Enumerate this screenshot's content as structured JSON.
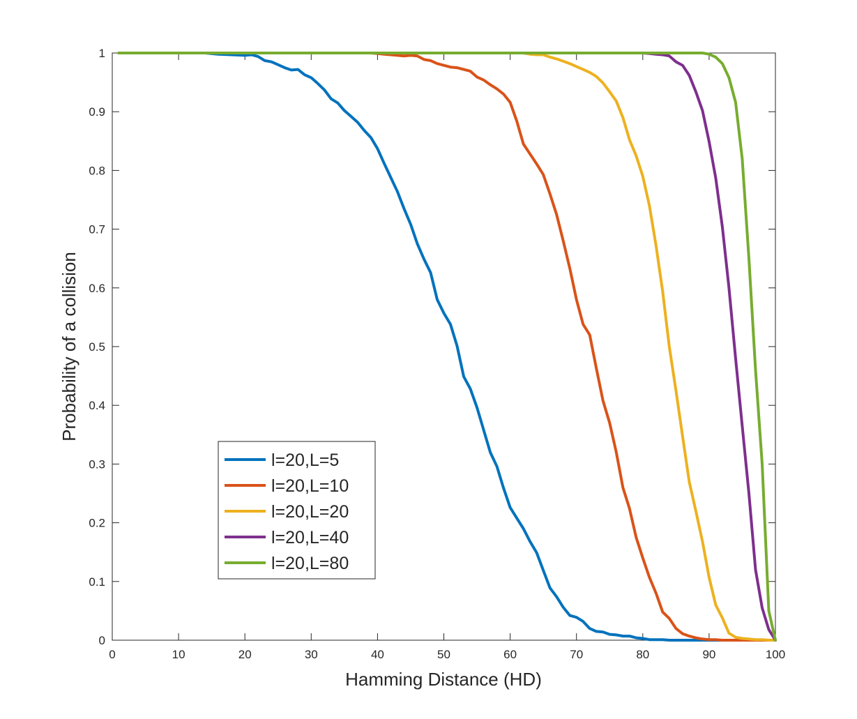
{
  "chart_data": {
    "type": "line",
    "xlabel": "Hamming Distance (HD)",
    "ylabel": "Probability of a collision",
    "xlim": [
      0,
      100
    ],
    "ylim": [
      0,
      1
    ],
    "xticks": [
      "0",
      "10",
      "20",
      "30",
      "40",
      "50",
      "60",
      "70",
      "80",
      "90",
      "100"
    ],
    "yticks": [
      "0",
      "0.1",
      "0.2",
      "0.3",
      "0.4",
      "0.5",
      "0.6",
      "0.7",
      "0.8",
      "0.9",
      "1"
    ],
    "grid": false,
    "legend_position": "lower-left",
    "x": [
      1,
      5,
      10,
      14,
      16,
      18,
      20,
      21,
      22,
      23,
      24,
      25,
      26,
      27,
      28,
      29,
      30,
      31,
      32,
      33,
      34,
      35,
      36,
      37,
      38,
      39,
      40,
      41,
      42,
      43,
      44,
      45,
      46,
      47,
      48,
      49,
      50,
      51,
      52,
      53,
      54,
      55,
      56,
      57,
      58,
      59,
      60,
      61,
      62,
      63,
      64,
      65,
      66,
      67,
      68,
      69,
      70,
      71,
      72,
      73,
      74,
      75,
      76,
      77,
      78,
      79,
      80,
      81,
      82,
      83,
      84,
      85,
      86,
      87,
      88,
      89,
      90,
      91,
      92,
      93,
      94,
      95,
      96,
      97,
      98,
      99,
      100
    ],
    "series": [
      {
        "name": "l=20,L=5",
        "color": "#0072BD",
        "values": [
          1,
          1,
          1,
          1,
          0.998,
          0.997,
          0.996,
          0.997,
          0.994,
          0.987,
          0.985,
          0.98,
          0.975,
          0.971,
          0.972,
          0.963,
          0.958,
          0.948,
          0.937,
          0.922,
          0.915,
          0.902,
          0.892,
          0.882,
          0.868,
          0.856,
          0.837,
          0.812,
          0.788,
          0.764,
          0.735,
          0.708,
          0.675,
          0.649,
          0.626,
          0.58,
          0.557,
          0.538,
          0.501,
          0.449,
          0.428,
          0.396,
          0.358,
          0.32,
          0.296,
          0.259,
          0.226,
          0.208,
          0.19,
          0.168,
          0.149,
          0.119,
          0.089,
          0.074,
          0.056,
          0.042,
          0.039,
          0.032,
          0.02,
          0.015,
          0.014,
          0.01,
          0.009,
          0.007,
          0.007,
          0.004,
          0.003,
          0.001,
          0.001,
          0.001,
          0,
          0,
          0,
          0,
          0,
          0,
          0,
          0,
          0,
          0,
          0,
          0,
          0,
          0,
          0,
          0,
          0
        ]
      },
      {
        "name": "l=20,L=10",
        "color": "#D95319",
        "values": [
          1,
          1,
          1,
          1,
          1,
          1,
          1,
          1,
          1,
          1,
          1,
          1,
          1,
          1,
          1,
          1,
          1,
          1,
          1,
          1,
          1,
          1,
          1,
          1,
          1,
          1,
          0.999,
          0.998,
          0.997,
          0.996,
          0.995,
          0.996,
          0.995,
          0.989,
          0.987,
          0.982,
          0.979,
          0.976,
          0.975,
          0.972,
          0.969,
          0.959,
          0.954,
          0.946,
          0.939,
          0.93,
          0.916,
          0.884,
          0.845,
          0.828,
          0.811,
          0.793,
          0.76,
          0.725,
          0.68,
          0.633,
          0.58,
          0.538,
          0.52,
          0.463,
          0.408,
          0.37,
          0.32,
          0.26,
          0.224,
          0.175,
          0.14,
          0.107,
          0.08,
          0.048,
          0.037,
          0.02,
          0.011,
          0.007,
          0.004,
          0.002,
          0.001,
          0.001,
          0,
          0,
          0,
          0,
          0,
          0,
          0,
          0,
          0
        ]
      },
      {
        "name": "l=20,L=20",
        "color": "#EDB120",
        "values": [
          1,
          1,
          1,
          1,
          1,
          1,
          1,
          1,
          1,
          1,
          1,
          1,
          1,
          1,
          1,
          1,
          1,
          1,
          1,
          1,
          1,
          1,
          1,
          1,
          1,
          1,
          1,
          1,
          1,
          1,
          1,
          1,
          1,
          1,
          1,
          1,
          1,
          1,
          1,
          1,
          1,
          1,
          1,
          1,
          1,
          1,
          1,
          1,
          1,
          0.998,
          0.997,
          0.997,
          0.993,
          0.99,
          0.986,
          0.982,
          0.977,
          0.972,
          0.967,
          0.96,
          0.949,
          0.934,
          0.918,
          0.89,
          0.852,
          0.825,
          0.79,
          0.74,
          0.672,
          0.594,
          0.5,
          0.425,
          0.347,
          0.27,
          0.22,
          0.168,
          0.107,
          0.06,
          0.038,
          0.012,
          0.005,
          0.003,
          0.002,
          0.001,
          0.001,
          0,
          0
        ]
      },
      {
        "name": "l=20,L=40",
        "color": "#7E2F8E",
        "values": [
          1,
          1,
          1,
          1,
          1,
          1,
          1,
          1,
          1,
          1,
          1,
          1,
          1,
          1,
          1,
          1,
          1,
          1,
          1,
          1,
          1,
          1,
          1,
          1,
          1,
          1,
          1,
          1,
          1,
          1,
          1,
          1,
          1,
          1,
          1,
          1,
          1,
          1,
          1,
          1,
          1,
          1,
          1,
          1,
          1,
          1,
          1,
          1,
          1,
          1,
          1,
          1,
          1,
          1,
          1,
          1,
          1,
          1,
          1,
          1,
          1,
          1,
          1,
          1,
          1,
          1,
          1,
          0.999,
          0.998,
          0.997,
          0.995,
          0.985,
          0.979,
          0.962,
          0.934,
          0.902,
          0.849,
          0.787,
          0.704,
          0.6,
          0.48,
          0.365,
          0.25,
          0.12,
          0.055,
          0.018,
          0
        ]
      },
      {
        "name": "l=20,L=80",
        "color": "#77AC30",
        "values": [
          1,
          1,
          1,
          1,
          1,
          1,
          1,
          1,
          1,
          1,
          1,
          1,
          1,
          1,
          1,
          1,
          1,
          1,
          1,
          1,
          1,
          1,
          1,
          1,
          1,
          1,
          1,
          1,
          1,
          1,
          1,
          1,
          1,
          1,
          1,
          1,
          1,
          1,
          1,
          1,
          1,
          1,
          1,
          1,
          1,
          1,
          1,
          1,
          1,
          1,
          1,
          1,
          1,
          1,
          1,
          1,
          1,
          1,
          1,
          1,
          1,
          1,
          1,
          1,
          1,
          1,
          1,
          1,
          1,
          1,
          1,
          1,
          1,
          1,
          1,
          1,
          0.998,
          0.993,
          0.982,
          0.958,
          0.916,
          0.82,
          0.65,
          0.46,
          0.3,
          0.05,
          0
        ]
      }
    ]
  }
}
